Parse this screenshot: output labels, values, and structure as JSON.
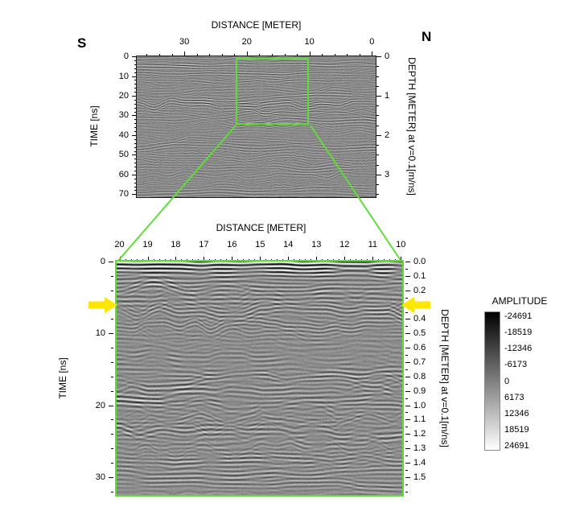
{
  "figure": {
    "orientation_left": "S",
    "orientation_right": "N",
    "top_panel": {
      "title": "DISTANCE [METER]",
      "x_ticks": [
        "30",
        "20",
        "10",
        "0"
      ],
      "left_axis_label": "TIME [ns]",
      "left_ticks": [
        "0",
        "10",
        "20",
        "30",
        "40",
        "50",
        "60",
        "70"
      ],
      "right_axis_label": "DEPTH [METER] at v=0.1[m/ns]",
      "right_ticks": [
        "0",
        "1",
        "2",
        "3"
      ]
    },
    "bottom_panel": {
      "title": "DISTANCE [METER]",
      "x_ticks": [
        "20",
        "19",
        "18",
        "17",
        "16",
        "15",
        "14",
        "13",
        "12",
        "11",
        "10"
      ],
      "left_axis_label": "TIME [ns]",
      "left_ticks": [
        "0",
        "10",
        "20",
        "30"
      ],
      "right_axis_label": "DEPTH [METER] at v=0.1[m/ns]",
      "right_ticks": [
        "0.0",
        "0.1",
        "0.2",
        "0.3",
        "0.4",
        "0.5",
        "0.6",
        "0.7",
        "0.8",
        "0.9",
        "1.0",
        "1.1",
        "1.2",
        "1.3",
        "1.4",
        "1.5"
      ]
    },
    "colorbar": {
      "title": "AMPLITUDE",
      "ticks": [
        "-24691",
        "-18519",
        "-12346",
        "-6173",
        "0",
        "6173",
        "12346",
        "18519",
        "24691"
      ]
    },
    "colors": {
      "highlight_green": "#5ddd35",
      "arrow_yellow": "#ffe600",
      "axis_black": "#000000"
    }
  },
  "chart_data": [
    {
      "type": "heatmap",
      "title": "Full GPR radargram profile, south (S) to north (N)",
      "xlabel": "DISTANCE [METER]",
      "ylabel": "TIME [ns]",
      "y2label": "DEPTH [METER] at v=0.1[m/ns]",
      "x_ticks": [
        30,
        20,
        10,
        0
      ],
      "x_range": [
        37.5,
        0
      ],
      "x_reversed": true,
      "y_ticks": [
        0,
        10,
        20,
        30,
        40,
        50,
        60,
        70
      ],
      "y_range": [
        0,
        71.5
      ],
      "y2_ticks": [
        0,
        1,
        2,
        3
      ],
      "colormap": "grayscale",
      "grid": false,
      "legend_position": "none",
      "zoom_box": {
        "x_from_m": 20,
        "x_to_m": 10,
        "time_from_ns": 0,
        "time_to_ns": 35,
        "color": "#5ddd35"
      }
    },
    {
      "type": "heatmap",
      "title": "Zoomed GPR radargram (region of green box)",
      "xlabel": "DISTANCE [METER]",
      "ylabel": "TIME [ns]",
      "y2label": "DEPTH [METER] at v=0.1[m/ns]",
      "x_ticks": [
        20,
        19,
        18,
        17,
        16,
        15,
        14,
        13,
        12,
        11,
        10
      ],
      "x_range": [
        20,
        10
      ],
      "x_reversed": true,
      "y_ticks": [
        0,
        10,
        20,
        30
      ],
      "y_range": [
        0,
        32.5
      ],
      "y2_ticks": [
        0.0,
        0.1,
        0.2,
        0.3,
        0.4,
        0.5,
        0.6,
        0.7,
        0.8,
        0.9,
        1.0,
        1.1,
        1.2,
        1.3,
        1.4,
        1.5
      ],
      "colormap": "grayscale",
      "grid": false,
      "legend_position": "none",
      "annotations": [
        {
          "type": "arrow",
          "color": "#ffe600",
          "points": "right",
          "at_x_m": 20,
          "at_depth_m": 0.3
        },
        {
          "type": "arrow",
          "color": "#ffe600",
          "points": "left",
          "at_x_m": 10,
          "at_depth_m": 0.3
        }
      ]
    },
    {
      "type": "colorbar",
      "title": "AMPLITUDE",
      "min": -24691,
      "max": 24691,
      "ticks": [
        -24691,
        -18519,
        -12346,
        -6173,
        0,
        6173,
        12346,
        18519,
        24691
      ],
      "black_at": -24691,
      "white_at": 24691
    }
  ]
}
